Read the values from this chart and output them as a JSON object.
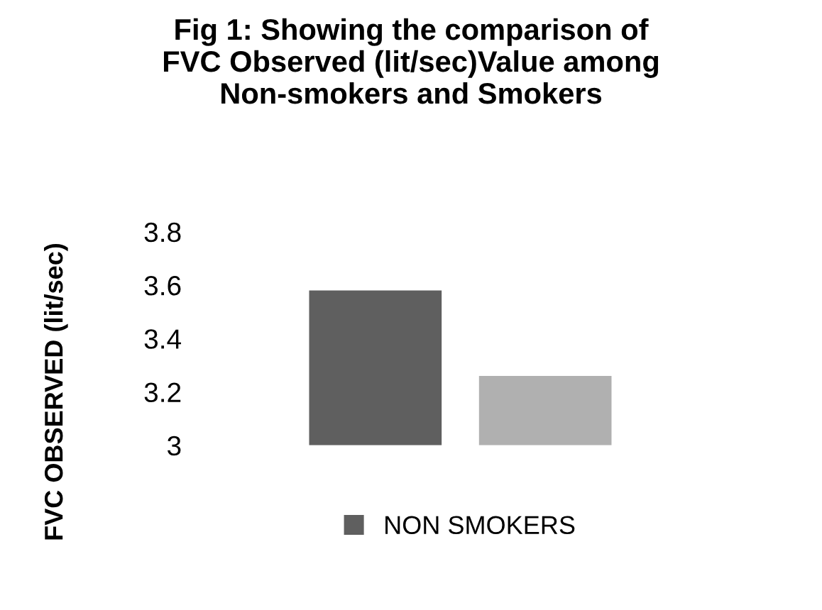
{
  "chart_data": {
    "type": "bar",
    "title": "Fig 1: Showing the comparison of\nFVC Observed (lit/sec)Value among\nNon-smokers and Smokers",
    "ylabel": "FVC OBSERVED (lit/sec)",
    "categories": [
      null
    ],
    "series": [
      {
        "name": "NON SMOKERS",
        "color": "#5f5f5f",
        "values": [
          3.58
        ]
      },
      {
        "color": "#b0b0b0",
        "values": [
          3.26
        ]
      }
    ],
    "ylim": [
      3,
      3.8
    ],
    "yticks": [
      {
        "value": 3,
        "label": "3"
      },
      3.2,
      3.4,
      3.6,
      3.8
    ],
    "grid": false,
    "legend": "bottom"
  }
}
